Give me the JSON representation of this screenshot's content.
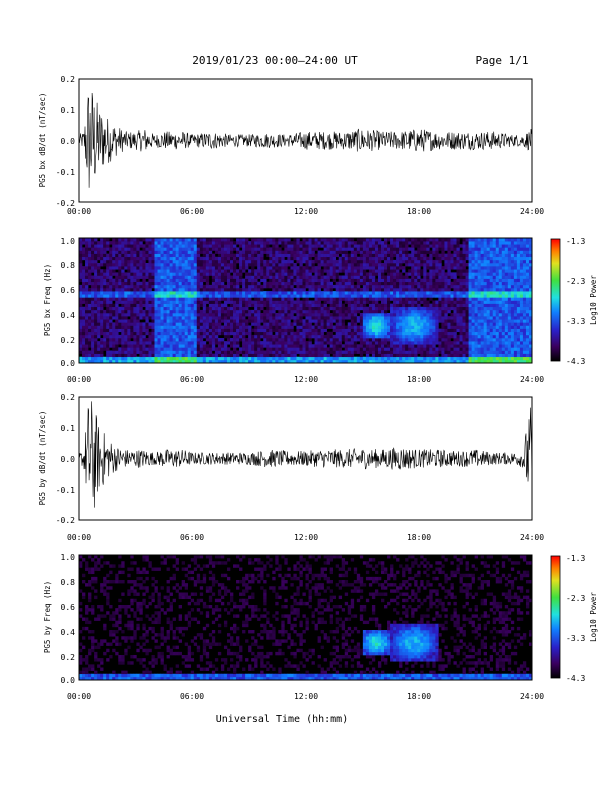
{
  "header": {
    "title": "2019/01/23  00:00–24:00 UT",
    "page": "Page 1/1"
  },
  "xlabel": "Universal Time (hh:mm)",
  "colors": {
    "axis": "#000000",
    "background": "#ffffff",
    "trace": "#000000"
  },
  "chart_data": [
    {
      "type": "line",
      "ylabel": "PG5 bx dB/dt (nT/sec)",
      "xlim": [
        0,
        24
      ],
      "ylim": [
        -0.2,
        0.2
      ],
      "xticks": [
        "00:00",
        "06:00",
        "12:00",
        "18:00",
        "24:00"
      ],
      "yticks": [
        "0.2",
        "0.1",
        "0.0",
        "-0.1",
        "-0.2"
      ],
      "envelope_hours": [
        0,
        0.25,
        0.5,
        0.75,
        1,
        1.5,
        2,
        2.5,
        3,
        3.5,
        4,
        4.5,
        5,
        5.5,
        6,
        7,
        8,
        9,
        10,
        11,
        12,
        13,
        14,
        15,
        16,
        17,
        18,
        19,
        20,
        21,
        22,
        23,
        23.5,
        24
      ],
      "envelope_amplitude": [
        0.02,
        0.03,
        0.2,
        0.18,
        0.12,
        0.08,
        0.05,
        0.03,
        0.03,
        0.04,
        0.02,
        0.03,
        0.03,
        0.03,
        0.02,
        0.03,
        0.02,
        0.02,
        0.025,
        0.02,
        0.03,
        0.03,
        0.03,
        0.04,
        0.03,
        0.03,
        0.04,
        0.03,
        0.03,
        0.03,
        0.03,
        0.02,
        0.02,
        0.04
      ]
    },
    {
      "type": "heatmap",
      "ylabel": "PG5 bx Freq (Hz)",
      "colorbar_label": "Log10 Power",
      "xlim": [
        0,
        24
      ],
      "ylim": [
        0,
        1
      ],
      "xticks": [
        "00:00",
        "06:00",
        "12:00",
        "18:00",
        "24:00"
      ],
      "yticks": [
        "1.0",
        "0.8",
        "0.6",
        "0.4",
        "0.2",
        "0.0"
      ],
      "colorbar_ticks": [
        "-1.3",
        "-2.3",
        "-3.3",
        "-4.3"
      ],
      "zlim": [
        -4.3,
        -1.3
      ],
      "background_log_power": -3.9,
      "broadband_hours": [
        [
          4.0,
          6.3
        ],
        [
          20.7,
          24.0
        ]
      ],
      "harmonic_line_hz": 0.55,
      "emissions": [
        {
          "hours": [
            15.0,
            16.5
          ],
          "hz": [
            0.2,
            0.4
          ],
          "log_power": -2.7
        },
        {
          "hours": [
            16.5,
            19.0
          ],
          "hz": [
            0.15,
            0.45
          ],
          "log_power": -2.9
        }
      ]
    },
    {
      "type": "line",
      "ylabel": "PG5 by dB/dt (nT/sec)",
      "xlim": [
        0,
        24
      ],
      "ylim": [
        -0.2,
        0.2
      ],
      "xticks": [
        "00:00",
        "06:00",
        "12:00",
        "18:00",
        "24:00"
      ],
      "yticks": [
        "0.2",
        "0.1",
        "0.0",
        "-0.1",
        "-0.2"
      ],
      "envelope_hours": [
        0,
        0.25,
        0.5,
        0.75,
        1,
        1.5,
        2,
        2.5,
        3,
        3.5,
        4,
        4.5,
        5,
        5.5,
        6,
        7,
        8,
        9,
        10,
        11,
        12,
        13,
        14,
        15,
        16,
        17,
        18,
        19,
        20,
        21,
        22,
        23,
        23.5,
        24
      ],
      "envelope_amplitude": [
        0.02,
        0.03,
        0.2,
        0.2,
        0.12,
        0.07,
        0.04,
        0.03,
        0.03,
        0.03,
        0.02,
        0.03,
        0.03,
        0.03,
        0.02,
        0.02,
        0.02,
        0.02,
        0.03,
        0.025,
        0.025,
        0.03,
        0.03,
        0.035,
        0.03,
        0.04,
        0.03,
        0.03,
        0.025,
        0.03,
        0.02,
        0.02,
        0.03,
        0.2
      ]
    },
    {
      "type": "heatmap",
      "ylabel": "PG5 by Freq (Hz)",
      "colorbar_label": "Log10 Power",
      "xlim": [
        0,
        24
      ],
      "ylim": [
        0,
        1
      ],
      "xticks": [
        "00:00",
        "06:00",
        "12:00",
        "18:00",
        "24:00"
      ],
      "yticks": [
        "1.0",
        "0.8",
        "0.6",
        "0.4",
        "0.2",
        "0.0"
      ],
      "colorbar_ticks": [
        "-1.3",
        "-2.3",
        "-3.3",
        "-4.3"
      ],
      "zlim": [
        -4.3,
        -1.3
      ],
      "background_log_power": -4.2,
      "broadband_hours": [],
      "harmonic_line_hz": null,
      "emissions": [
        {
          "hours": [
            15.0,
            16.5
          ],
          "hz": [
            0.2,
            0.4
          ],
          "log_power": -2.7
        },
        {
          "hours": [
            16.5,
            19.0
          ],
          "hz": [
            0.15,
            0.45
          ],
          "log_power": -2.9
        }
      ]
    }
  ]
}
